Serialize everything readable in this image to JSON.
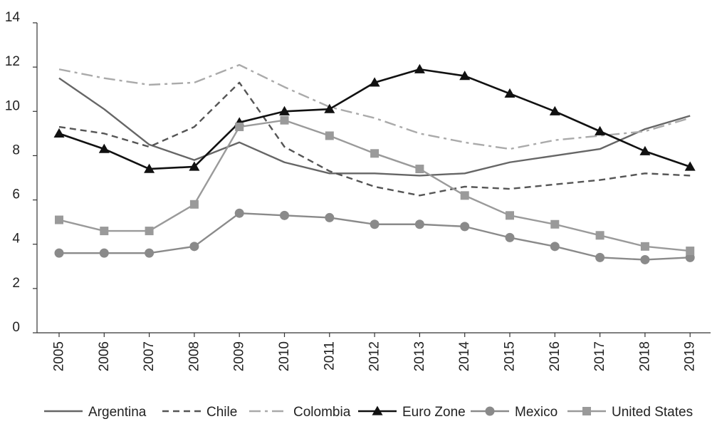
{
  "chart_data": {
    "type": "line",
    "title": "",
    "xlabel": "",
    "ylabel": "",
    "x": [
      "2005",
      "2006",
      "2007",
      "2008",
      "2009",
      "2010",
      "2011",
      "2012",
      "2013",
      "2014",
      "2015",
      "2016",
      "2017",
      "2018",
      "2019"
    ],
    "yticks": [
      "0",
      "2",
      "4",
      "6",
      "8",
      "10",
      "12",
      "14"
    ],
    "ylim": [
      0,
      14
    ],
    "grid": false,
    "legend_position": "bottom",
    "series": [
      {
        "name": "Argentina",
        "style": "solid",
        "marker": "none",
        "color": "#666666",
        "values": [
          11.5,
          10.1,
          8.5,
          7.8,
          8.6,
          7.7,
          7.2,
          7.2,
          7.1,
          7.2,
          7.7,
          8.0,
          8.3,
          9.2,
          9.8
        ]
      },
      {
        "name": "Chile",
        "style": "dashed",
        "marker": "none",
        "color": "#555555",
        "values": [
          9.3,
          9.0,
          8.4,
          9.3,
          11.3,
          8.4,
          7.3,
          6.6,
          6.2,
          6.6,
          6.5,
          6.7,
          6.9,
          7.2,
          7.1
        ]
      },
      {
        "name": "Colombia",
        "style": "dashdot",
        "marker": "none",
        "color": "#aaaaaa",
        "values": [
          11.9,
          11.5,
          11.2,
          11.3,
          12.1,
          11.1,
          10.2,
          9.7,
          9.0,
          8.6,
          8.3,
          8.7,
          8.9,
          9.1,
          9.7
        ]
      },
      {
        "name": "Euro Zone",
        "style": "solid",
        "marker": "triangle",
        "color": "#111111",
        "values": [
          9.0,
          8.3,
          7.4,
          7.5,
          9.5,
          10.0,
          10.1,
          11.3,
          11.9,
          11.6,
          10.8,
          10.0,
          9.1,
          8.2,
          7.5
        ]
      },
      {
        "name": "Mexico",
        "style": "solid",
        "marker": "circle",
        "color": "#8a8a8a",
        "values": [
          3.6,
          3.6,
          3.6,
          3.9,
          5.4,
          5.3,
          5.2,
          4.9,
          4.9,
          4.8,
          4.3,
          3.9,
          3.4,
          3.3,
          3.4
        ]
      },
      {
        "name": "United States",
        "style": "solid",
        "marker": "square",
        "color": "#9a9a9a",
        "values": [
          5.1,
          4.6,
          4.6,
          5.8,
          9.3,
          9.6,
          8.9,
          8.1,
          7.4,
          6.2,
          5.3,
          4.9,
          4.4,
          3.9,
          3.7
        ]
      }
    ]
  }
}
